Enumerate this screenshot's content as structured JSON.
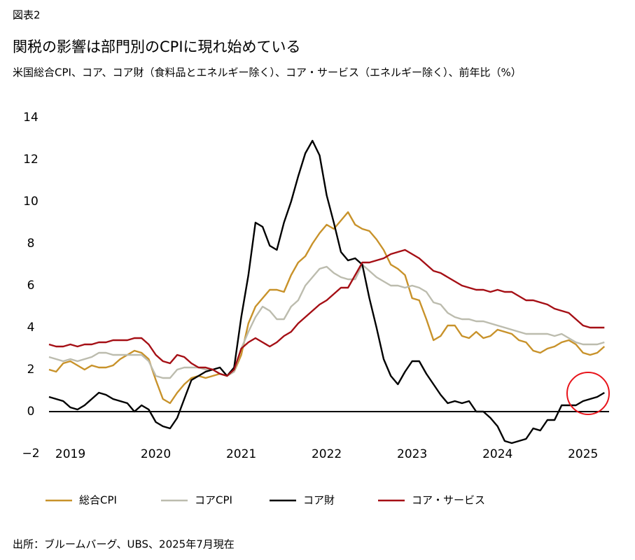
{
  "label": "図表2",
  "chart_data": {
    "type": "line",
    "title": "関税の影響は部門別のCPIに現れ始めている",
    "subtitle": "米国総合CPI、コア、コア財（食料品とエネルギー除く）、コア・サービス（エネルギー除く）、前年比（%）",
    "categories": [
      null,
      null,
      null,
      "2019",
      null,
      null,
      null,
      null,
      null,
      null,
      null,
      null,
      null,
      null,
      null,
      "2020",
      null,
      null,
      null,
      null,
      null,
      null,
      null,
      null,
      null,
      null,
      null,
      "2021",
      null,
      null,
      null,
      null,
      null,
      null,
      null,
      null,
      null,
      null,
      null,
      "2022",
      null,
      null,
      null,
      null,
      null,
      null,
      null,
      null,
      null,
      null,
      null,
      "2023",
      null,
      null,
      null,
      null,
      null,
      null,
      null,
      null,
      null,
      null,
      null,
      "2024",
      null,
      null,
      null,
      null,
      null,
      null,
      null,
      null,
      null,
      null,
      null,
      "2025",
      null,
      null,
      null
    ],
    "series": [
      {
        "name": "総合CPI",
        "color": "#c8922a",
        "values": [
          2.0,
          1.9,
          2.3,
          2.4,
          2.2,
          2.0,
          2.2,
          2.1,
          2.1,
          2.2,
          2.5,
          2.7,
          2.9,
          2.8,
          2.5,
          1.5,
          0.6,
          0.4,
          0.9,
          1.3,
          1.6,
          1.7,
          1.6,
          1.7,
          1.8,
          1.7,
          1.9,
          2.7,
          4.2,
          5.0,
          5.4,
          5.8,
          5.8,
          5.7,
          6.5,
          7.1,
          7.4,
          8.0,
          8.5,
          8.9,
          8.7,
          9.1,
          9.5,
          8.9,
          8.7,
          8.6,
          8.2,
          7.7,
          7.0,
          6.8,
          6.5,
          5.4,
          5.3,
          4.4,
          3.4,
          3.6,
          4.1,
          4.1,
          3.6,
          3.5,
          3.8,
          3.5,
          3.6,
          3.9,
          3.8,
          3.7,
          3.4,
          3.3,
          2.9,
          2.8,
          3.0,
          3.1,
          3.3,
          3.4,
          3.2,
          2.8,
          2.7,
          2.8,
          3.1
        ]
      },
      {
        "name": "コアCPI",
        "color": "#bcbcae",
        "values": [
          2.6,
          2.5,
          2.4,
          2.5,
          2.4,
          2.5,
          2.6,
          2.8,
          2.8,
          2.7,
          2.7,
          2.7,
          2.7,
          2.7,
          2.4,
          1.7,
          1.6,
          1.6,
          2.0,
          2.1,
          2.1,
          2.1,
          2.0,
          2.0,
          1.8,
          1.7,
          1.9,
          3.0,
          3.8,
          4.5,
          5.0,
          4.8,
          4.4,
          4.4,
          5.0,
          5.3,
          6.0,
          6.4,
          6.8,
          6.9,
          6.6,
          6.4,
          6.3,
          6.3,
          7.0,
          6.7,
          6.4,
          6.2,
          6.0,
          6.0,
          5.9,
          6.0,
          5.9,
          5.7,
          5.2,
          5.1,
          4.7,
          4.5,
          4.4,
          4.4,
          4.3,
          4.3,
          4.2,
          4.1,
          4.0,
          3.9,
          3.8,
          3.7,
          3.7,
          3.7,
          3.7,
          3.6,
          3.7,
          3.5,
          3.3,
          3.2,
          3.2,
          3.2,
          3.3
        ]
      },
      {
        "name": "コア財",
        "color": "#000000",
        "values": [
          0.7,
          0.6,
          0.5,
          0.2,
          0.1,
          0.3,
          0.6,
          0.9,
          0.8,
          0.6,
          0.5,
          0.4,
          0.0,
          0.3,
          0.1,
          -0.5,
          -0.7,
          -0.8,
          -0.3,
          0.6,
          1.5,
          1.7,
          1.9,
          2.0,
          2.1,
          1.7,
          2.1,
          4.5,
          6.5,
          9.0,
          8.8,
          7.9,
          7.7,
          9.0,
          10.0,
          11.2,
          12.3,
          12.9,
          12.2,
          10.3,
          9.0,
          7.6,
          7.2,
          7.3,
          7.0,
          5.4,
          4.0,
          2.5,
          1.7,
          1.3,
          1.9,
          2.4,
          2.4,
          1.8,
          1.3,
          0.8,
          0.4,
          0.5,
          0.4,
          0.5,
          0.0,
          0.0,
          -0.3,
          -0.7,
          -1.4,
          -1.5,
          -1.4,
          -1.3,
          -0.8,
          -0.9,
          -0.4,
          -0.4,
          0.3,
          0.3,
          0.3,
          0.5,
          0.6,
          0.7,
          0.9
        ]
      },
      {
        "name": "コア・サービス",
        "color": "#a50f15",
        "values": [
          3.2,
          3.1,
          3.1,
          3.2,
          3.1,
          3.2,
          3.2,
          3.3,
          3.3,
          3.4,
          3.4,
          3.4,
          3.5,
          3.5,
          3.2,
          2.7,
          2.4,
          2.3,
          2.7,
          2.6,
          2.3,
          2.1,
          2.1,
          2.0,
          1.8,
          1.7,
          2.0,
          3.0,
          3.3,
          3.5,
          3.3,
          3.1,
          3.3,
          3.6,
          3.8,
          4.2,
          4.5,
          4.8,
          5.1,
          5.3,
          5.6,
          5.9,
          5.9,
          6.5,
          7.1,
          7.1,
          7.2,
          7.3,
          7.5,
          7.6,
          7.7,
          7.5,
          7.3,
          7.0,
          6.7,
          6.6,
          6.4,
          6.2,
          6.0,
          5.9,
          5.8,
          5.8,
          5.7,
          5.8,
          5.7,
          5.7,
          5.5,
          5.3,
          5.3,
          5.2,
          5.1,
          4.9,
          4.8,
          4.7,
          4.4,
          4.1,
          4.0,
          4.0,
          4.0
        ]
      }
    ],
    "ylim": [
      -2,
      14
    ],
    "yticks": [
      {
        "value": -2,
        "label": "−2"
      },
      0,
      2,
      4,
      6,
      8,
      10,
      12,
      14
    ],
    "grid": false,
    "source": "出所：ブルームバーグ、UBS、2025年7月現在"
  }
}
